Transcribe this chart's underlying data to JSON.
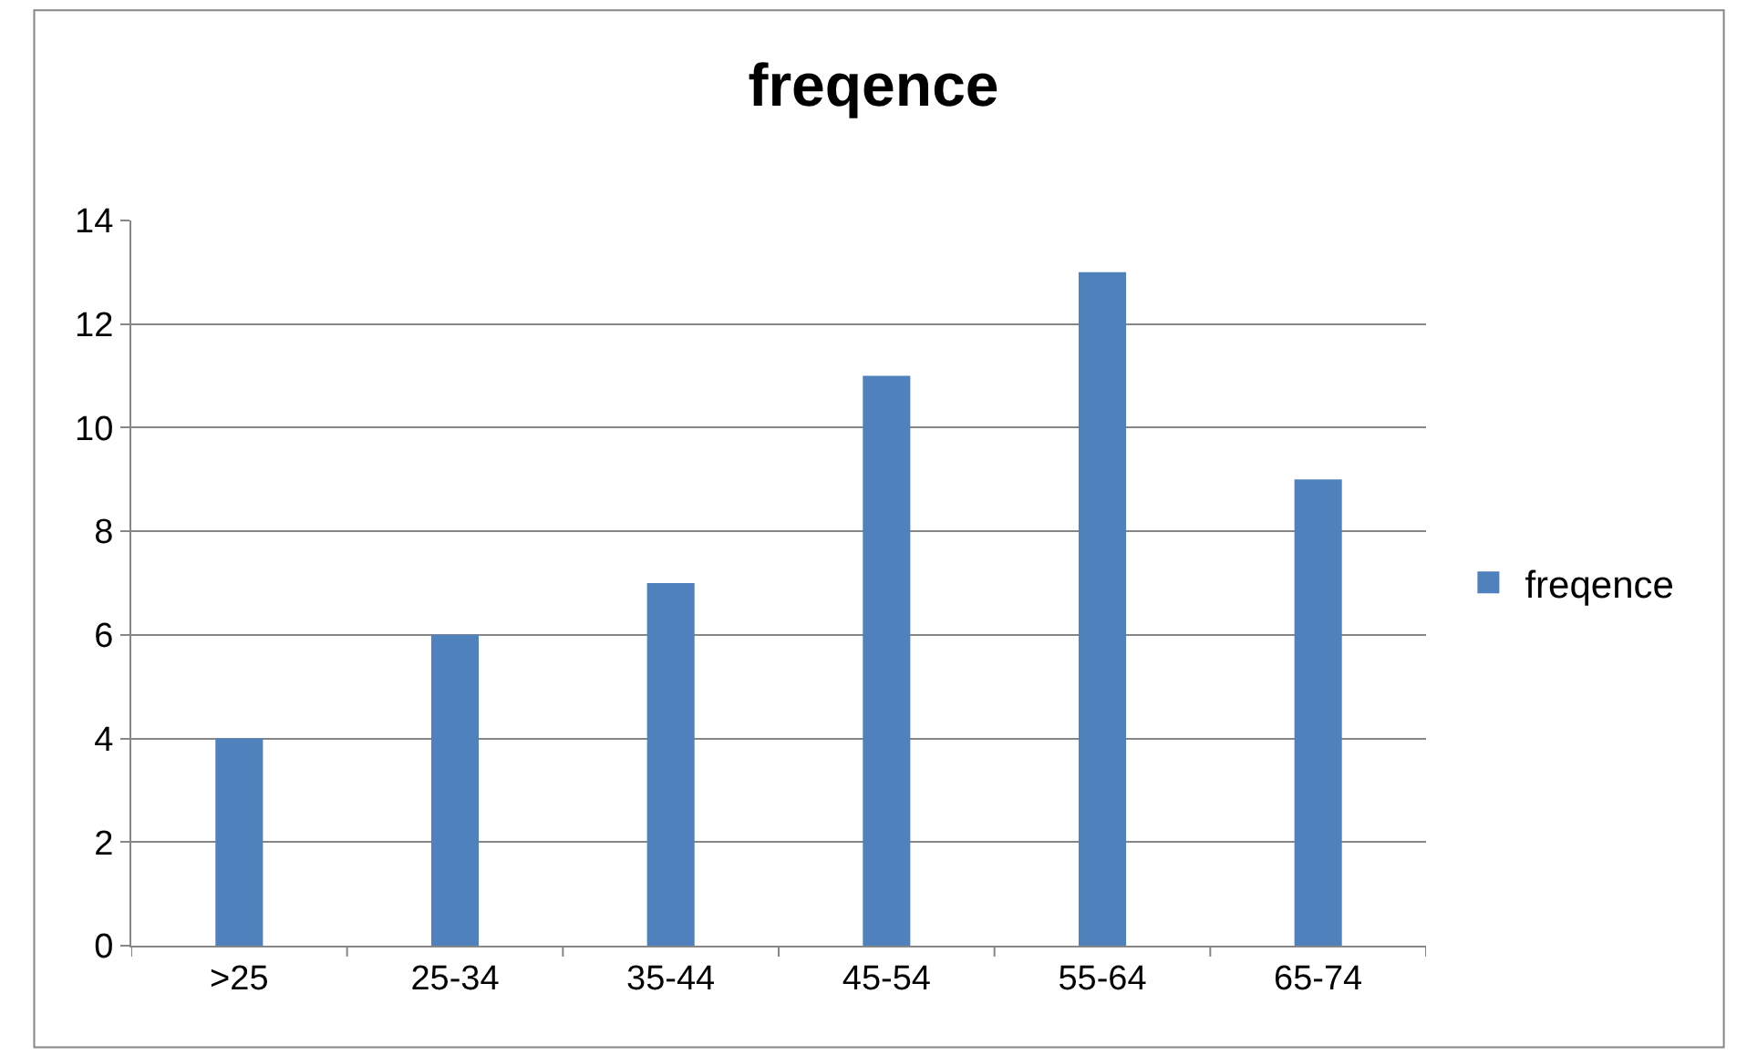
{
  "chart_data": {
    "type": "bar",
    "title": "freqence",
    "categories": [
      ">25",
      "25-34",
      "35-44",
      "45-54",
      "55-64",
      "65-74"
    ],
    "series": [
      {
        "name": "freqence",
        "color": "#4f81bd",
        "values": [
          4,
          6,
          7,
          11,
          13,
          9
        ]
      }
    ],
    "ylim": [
      0,
      14
    ],
    "yticks": [
      0,
      2,
      4,
      6,
      8,
      10,
      12,
      14
    ],
    "grid": "y",
    "legend": "right"
  }
}
